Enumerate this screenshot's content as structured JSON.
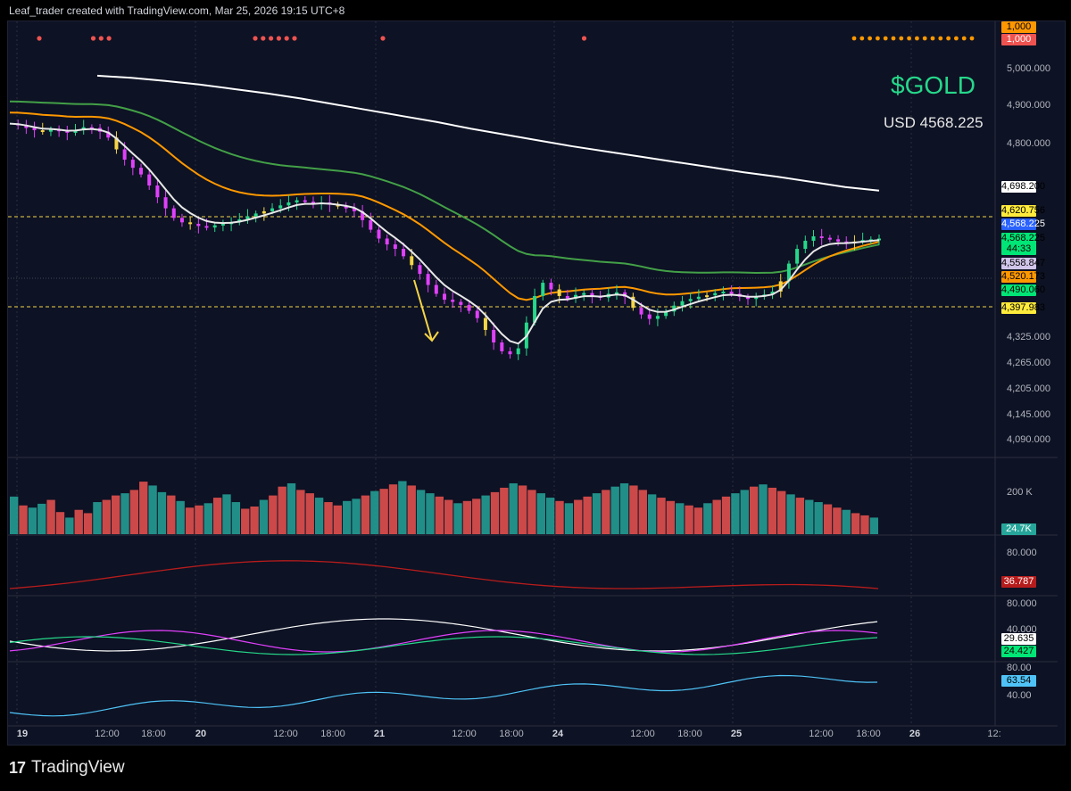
{
  "header": {
    "text": "Leaf_trader created with TradingView.com, Mar 25, 2026 19:15 UTC+8"
  },
  "ticker_label": "$GOLD",
  "price_label": "USD 4568.225",
  "footer": {
    "brand": "TradingView",
    "logo_icon": "tradingview-logo-icon"
  },
  "colors": {
    "background": "#0d1224",
    "bull_candle": "#26d88a",
    "bear_candle": "#e040fb",
    "neutral_candle": "#f5d547",
    "vol_up": "#26a69a",
    "vol_down": "#ef5350",
    "ema_fast": "#e8e8e8",
    "ema_mid": "#ff9800",
    "ema_slow": "#43a047",
    "ema_long": "#ffffff"
  },
  "chart_data": [
    {
      "type": "candlestick",
      "title": "",
      "price_axis": [
        "5,000.000",
        "4,900.000",
        "4,800.000",
        "4,325.000",
        "4,265.000",
        "4,205.000",
        "4,145.000",
        "4,090.000"
      ],
      "time_axis": [
        {
          "label": "19",
          "day": true
        },
        {
          "label": "12:00",
          "day": false
        },
        {
          "label": "18:00",
          "day": false
        },
        {
          "label": "20",
          "day": true
        },
        {
          "label": "12:00",
          "day": false
        },
        {
          "label": "18:00",
          "day": false
        },
        {
          "label": "21",
          "day": true
        },
        {
          "label": "12:00",
          "day": false
        },
        {
          "label": "18:00",
          "day": false
        },
        {
          "label": "24",
          "day": true
        },
        {
          "label": "12:00",
          "day": false
        },
        {
          "label": "18:00",
          "day": false
        },
        {
          "label": "25",
          "day": true
        },
        {
          "label": "12:00",
          "day": false
        },
        {
          "label": "18:00",
          "day": false
        },
        {
          "label": "26",
          "day": true
        },
        {
          "label": "12:",
          "day": false
        }
      ],
      "price_tags": [
        {
          "label": "1,000",
          "bg": "#ff9800",
          "fg": "#000000"
        },
        {
          "label": "1,000",
          "bg": "#ef5350",
          "fg": "#ffffff"
        },
        {
          "label": "4,698.200",
          "bg": "#ffffff",
          "fg": "#000000"
        },
        {
          "label": "4,620.756",
          "bg": "#ffeb3b",
          "fg": "#000000"
        },
        {
          "label": "4,568.225",
          "bg": "#2962ff",
          "fg": "#ffffff"
        },
        {
          "label": "4,568.225",
          "bg": "#00e676",
          "fg": "#000000"
        },
        {
          "label": "44:33",
          "bg": "#00e676",
          "fg": "#000000"
        },
        {
          "label": "4,558.847",
          "bg": "#d1c4e9",
          "fg": "#000000"
        },
        {
          "label": "4,520.173",
          "bg": "#ff9800",
          "fg": "#000000"
        },
        {
          "label": "4,490.060",
          "bg": "#00e676",
          "fg": "#000000"
        },
        {
          "label": "4,397.983",
          "bg": "#ffeb3b",
          "fg": "#000000"
        }
      ],
      "signal_dots": {
        "red": [
          0.03,
          0.085,
          0.093,
          0.101,
          0.25,
          0.258,
          0.266,
          0.274,
          0.282,
          0.29,
          0.38,
          0.585
        ],
        "orange_range": [
          0.86,
          0.98
        ]
      },
      "close_series": [
        4880,
        4876,
        4868,
        4862,
        4858,
        4864,
        4860,
        4855,
        4862,
        4870,
        4868,
        4858,
        4842,
        4810,
        4782,
        4760,
        4742,
        4712,
        4680,
        4650,
        4624,
        4612,
        4608,
        4602,
        4598,
        4604,
        4608,
        4612,
        4620,
        4628,
        4636,
        4642,
        4650,
        4658,
        4666,
        4672,
        4668,
        4662,
        4666,
        4660,
        4656,
        4650,
        4642,
        4618,
        4592,
        4568,
        4552,
        4540,
        4520,
        4496,
        4472,
        4442,
        4418,
        4402,
        4396,
        4388,
        4372,
        4352,
        4320,
        4286,
        4262,
        4254,
        4270,
        4340,
        4412,
        4448,
        4430,
        4412,
        4405,
        4415,
        4420,
        4412,
        4408,
        4418,
        4422,
        4410,
        4380,
        4362,
        4350,
        4358,
        4370,
        4386,
        4398,
        4404,
        4410,
        4414,
        4420,
        4424,
        4418,
        4410,
        4404,
        4410,
        4416,
        4424,
        4452,
        4500,
        4540,
        4562,
        4574,
        4570,
        4566,
        4560,
        4556,
        4560,
        4564,
        4566,
        4568
      ],
      "ema_long_series": [
        5010,
        5004,
        4996,
        4986,
        4974,
        4962,
        4948,
        4932,
        4916,
        4900,
        4884,
        4866,
        4850,
        4834,
        4818,
        4804,
        4790,
        4776,
        4762,
        4748,
        4736,
        4722,
        4708,
        4698
      ],
      "volume_axis": [
        "200 K"
      ],
      "volume_last": "24.7K",
      "volume_bars": [
        68,
        52,
        48,
        55,
        62,
        40,
        30,
        44,
        38,
        58,
        62,
        70,
        74,
        80,
        95,
        88,
        76,
        70,
        60,
        48,
        52,
        56,
        66,
        72,
        58,
        46,
        50,
        62,
        70,
        86,
        92,
        80,
        74,
        66,
        58,
        52,
        60,
        64,
        70,
        78,
        82,
        90,
        96,
        88,
        80,
        74,
        68,
        62,
        56,
        60,
        64,
        70,
        76,
        84,
        92,
        88,
        80,
        74,
        66,
        60,
        56,
        62,
        68,
        74,
        80,
        86,
        92,
        88,
        80,
        72,
        66,
        60,
        56,
        52,
        48,
        56,
        62,
        68,
        74,
        80,
        86,
        90,
        84,
        78,
        72,
        66,
        62,
        58,
        54,
        48,
        44,
        38,
        34,
        30
      ],
      "rsi_axis": [
        "80.000"
      ],
      "rsi_last": "36.787",
      "dmi_axis": [
        "80.000",
        "40.000"
      ],
      "dmi_last": [
        "29.635",
        "24.427"
      ],
      "osc_axis": [
        "80.00",
        "40.00"
      ],
      "osc_last": "63.54"
    }
  ]
}
